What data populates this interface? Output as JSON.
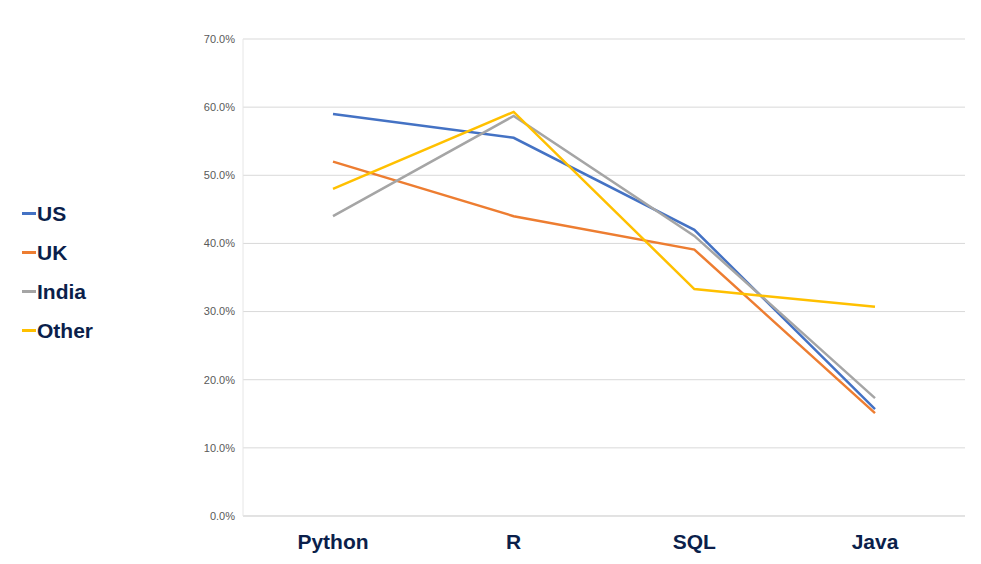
{
  "chart_data": {
    "type": "line",
    "categories": [
      "Python",
      "R",
      "SQL",
      "Java"
    ],
    "series": [
      {
        "name": "US",
        "color": "#4472c4",
        "values": [
          59.0,
          55.5,
          42.0,
          15.7
        ]
      },
      {
        "name": "UK",
        "color": "#ed7d31",
        "values": [
          52.0,
          44.0,
          39.1,
          15.1
        ]
      },
      {
        "name": "India",
        "color": "#a5a5a5",
        "values": [
          44.0,
          58.7,
          41.1,
          17.3
        ]
      },
      {
        "name": "Other",
        "color": "#ffc000",
        "values": [
          48.0,
          59.3,
          33.3,
          30.7
        ]
      }
    ],
    "ylim": [
      0,
      70
    ],
    "yticks": [
      {
        "value": 0,
        "label": "0.0%"
      },
      {
        "value": 10,
        "label": "10.0%"
      },
      {
        "value": 20,
        "label": "20.0%"
      },
      {
        "value": 30,
        "label": "30.0%"
      },
      {
        "value": 40,
        "label": "40.0%"
      },
      {
        "value": 50,
        "label": "50.0%"
      },
      {
        "value": 60,
        "label": "60.0%"
      },
      {
        "value": 70,
        "label": "70.0%"
      }
    ],
    "grid": true,
    "legend": "left"
  }
}
